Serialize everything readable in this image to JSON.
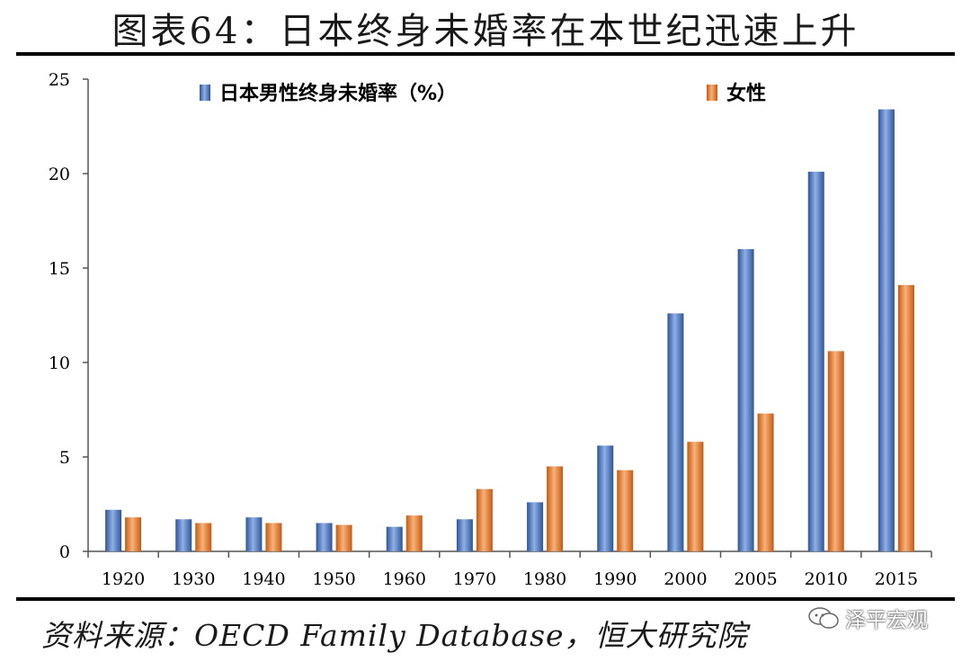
{
  "header": {
    "title": "图表64：日本终身未婚率在本世纪迅速上升"
  },
  "footer": {
    "source": "资料来源：OECD Family Database，恒大研究院",
    "watermark": "泽平宏观"
  },
  "chart_data": {
    "type": "bar",
    "categories": [
      "1920",
      "1930",
      "1940",
      "1950",
      "1960",
      "1970",
      "1980",
      "1990",
      "2000",
      "2005",
      "2010",
      "2015"
    ],
    "series": [
      {
        "name": "日本男性终身未婚率（%）",
        "color": "#4472C4",
        "values": [
          2.2,
          1.7,
          1.8,
          1.5,
          1.3,
          1.7,
          2.6,
          5.6,
          12.6,
          16.0,
          20.1,
          23.4
        ]
      },
      {
        "name": "女性",
        "color": "#ED7D31",
        "values": [
          1.8,
          1.5,
          1.5,
          1.4,
          1.9,
          3.3,
          4.5,
          4.3,
          5.8,
          7.3,
          10.6,
          14.1
        ]
      }
    ],
    "y_ticks": [
      "0",
      "5",
      "10",
      "15",
      "20",
      "25"
    ],
    "ylim": [
      0,
      25
    ],
    "grid": false,
    "legend": "top"
  }
}
